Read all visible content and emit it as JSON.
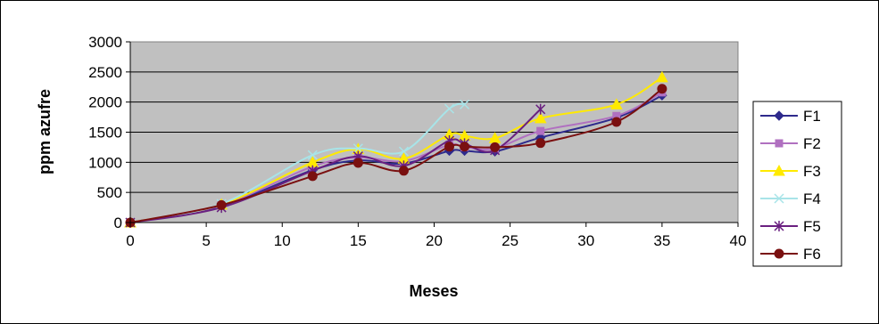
{
  "chart_data": {
    "type": "line",
    "title": "",
    "xlabel": "Meses",
    "ylabel": "ppm azufre",
    "xlim": [
      0,
      40
    ],
    "ylim": [
      0,
      3000
    ],
    "x_ticks": [
      "0",
      "5",
      "10",
      "15",
      "20",
      "25",
      "30",
      "35",
      "40"
    ],
    "y_ticks": [
      "0",
      "500",
      "1000",
      "1500",
      "2000",
      "2500",
      "3000"
    ],
    "grid": "horizontal",
    "legend_position": "right",
    "plot_background": "#c0c0c0",
    "series": [
      {
        "name": "F1",
        "color": "#2e2a8c",
        "marker": "diamond",
        "x": [
          0,
          6,
          12,
          15,
          18,
          21,
          22,
          24,
          27,
          32,
          35
        ],
        "y": [
          0,
          280,
          870,
          1030,
          980,
          1190,
          1190,
          1180,
          1410,
          1740,
          2110
        ]
      },
      {
        "name": "F2",
        "color": "#b070c0",
        "marker": "square",
        "x": [
          0,
          6,
          12,
          15,
          18,
          21,
          22,
          24,
          27,
          32,
          35
        ],
        "y": [
          0,
          290,
          930,
          1080,
          1020,
          1290,
          1250,
          1230,
          1520,
          1770,
          2160
        ]
      },
      {
        "name": "F3",
        "color": "#ffea00",
        "marker": "triangle",
        "x": [
          0,
          6,
          12,
          15,
          18,
          21,
          22,
          24,
          27,
          32,
          35
        ],
        "y": [
          0,
          300,
          1000,
          1220,
          1060,
          1460,
          1440,
          1400,
          1730,
          1960,
          2410
        ]
      },
      {
        "name": "F4",
        "color": "#a8e4e8",
        "marker": "x",
        "x": [
          0,
          6,
          12,
          15,
          18,
          21,
          22
        ],
        "y": [
          0,
          310,
          1120,
          1230,
          1180,
          1890,
          1960
        ]
      },
      {
        "name": "F5",
        "color": "#6a2080",
        "marker": "star",
        "x": [
          0,
          6,
          12,
          15,
          18,
          21,
          22,
          24,
          27
        ],
        "y": [
          0,
          250,
          860,
          1100,
          940,
          1360,
          1310,
          1200,
          1880
        ]
      },
      {
        "name": "F6",
        "color": "#7a1010",
        "marker": "circle",
        "x": [
          0,
          6,
          12,
          15,
          18,
          21,
          22,
          24,
          27,
          32,
          35
        ],
        "y": [
          0,
          290,
          770,
          990,
          860,
          1260,
          1260,
          1250,
          1320,
          1670,
          2220
        ]
      }
    ]
  }
}
